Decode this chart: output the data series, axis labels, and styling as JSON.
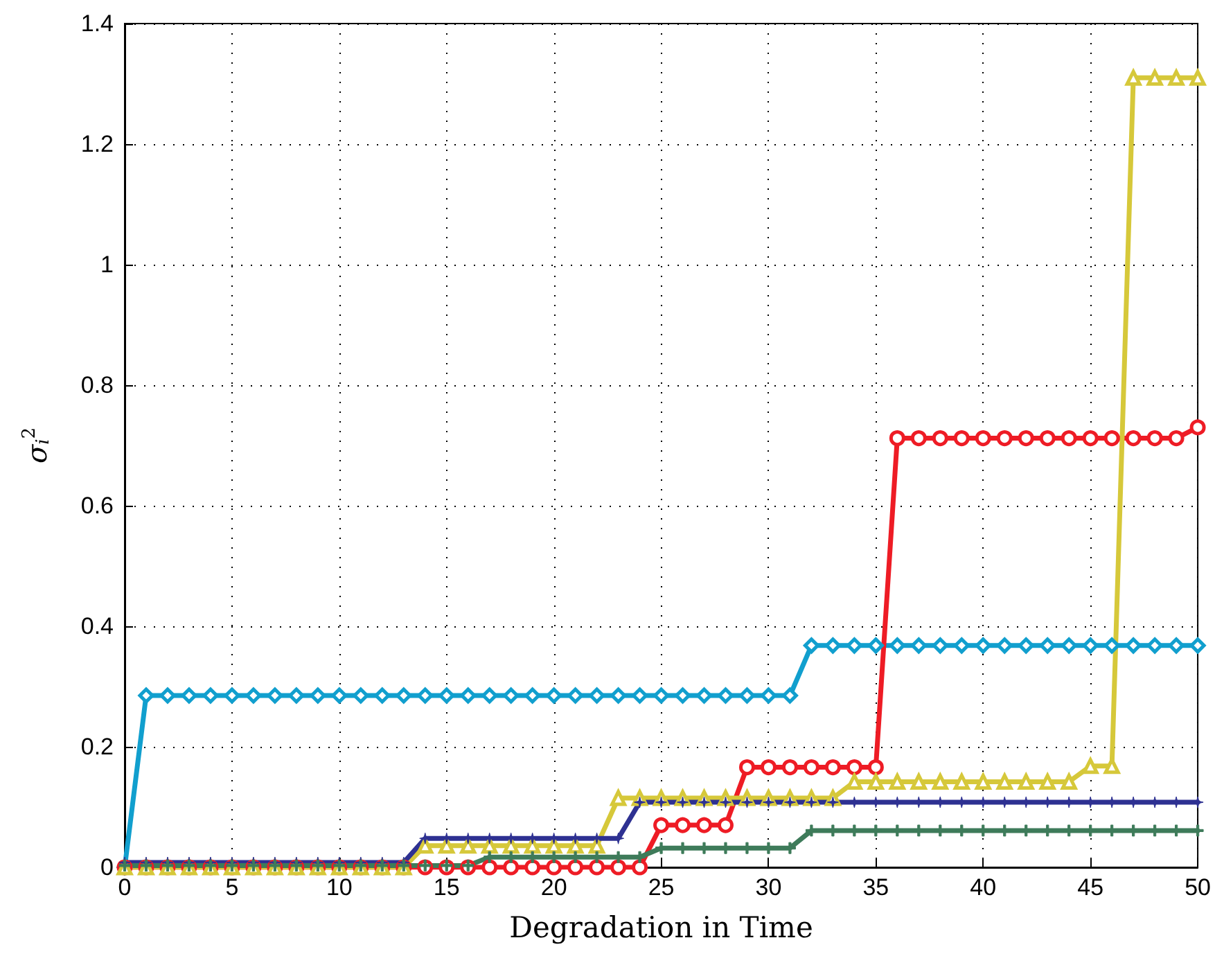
{
  "chart_data": {
    "type": "line",
    "xlabel": "Degradation in Time",
    "ylabel": "σ$_{i}$$^{2}$",
    "x": [
      0,
      1,
      2,
      3,
      4,
      5,
      6,
      7,
      8,
      9,
      10,
      11,
      12,
      13,
      14,
      15,
      16,
      17,
      18,
      19,
      20,
      21,
      22,
      23,
      24,
      25,
      26,
      27,
      28,
      29,
      30,
      31,
      32,
      33,
      34,
      35,
      36,
      37,
      38,
      39,
      40,
      41,
      42,
      43,
      44,
      45,
      46,
      47,
      48,
      49,
      50
    ],
    "xlim": [
      0,
      50
    ],
    "xticks": [
      0,
      5,
      10,
      15,
      20,
      25,
      30,
      35,
      40,
      45,
      50
    ],
    "ylim": [
      0,
      1.4
    ],
    "yticks": [
      0,
      0.2,
      0.4,
      0.6,
      0.8,
      1,
      1.2,
      1.4
    ],
    "grid": true,
    "legend": false,
    "line_style": "solid",
    "series": [
      {
        "color": "#119fce",
        "marker": "diamond",
        "values": [
          0,
          0.285,
          0.285,
          0.285,
          0.285,
          0.285,
          0.285,
          0.285,
          0.285,
          0.285,
          0.285,
          0.285,
          0.285,
          0.285,
          0.285,
          0.285,
          0.285,
          0.285,
          0.285,
          0.285,
          0.285,
          0.285,
          0.285,
          0.285,
          0.285,
          0.285,
          0.285,
          0.285,
          0.285,
          0.285,
          0.285,
          0.285,
          0.368,
          0.368,
          0.368,
          0.368,
          0.368,
          0.368,
          0.368,
          0.368,
          0.368,
          0.368,
          0.368,
          0.368,
          0.368,
          0.368,
          0.368,
          0.368,
          0.368,
          0.368,
          0.368
        ]
      },
      {
        "color": "#ee1c25",
        "marker": "circle",
        "values": [
          0,
          0,
          0,
          0,
          0,
          0,
          0,
          0,
          0,
          0,
          0,
          0,
          0,
          0,
          0,
          0,
          0,
          0,
          0,
          0,
          0,
          0,
          0,
          0,
          0,
          0.07,
          0.07,
          0.07,
          0.07,
          0.166,
          0.166,
          0.166,
          0.166,
          0.166,
          0.166,
          0.166,
          0.712,
          0.712,
          0.712,
          0.712,
          0.712,
          0.712,
          0.712,
          0.712,
          0.712,
          0.712,
          0.712,
          0.712,
          0.712,
          0.712,
          0.73
        ]
      },
      {
        "color": "#d6c83a",
        "marker": "triangle",
        "values": [
          0,
          0,
          0,
          0,
          0,
          0,
          0,
          0,
          0,
          0,
          0,
          0,
          0,
          0,
          0.036,
          0.036,
          0.036,
          0.036,
          0.036,
          0.036,
          0.036,
          0.036,
          0.036,
          0.115,
          0.115,
          0.115,
          0.115,
          0.115,
          0.115,
          0.115,
          0.115,
          0.115,
          0.115,
          0.115,
          0.142,
          0.142,
          0.142,
          0.142,
          0.142,
          0.142,
          0.142,
          0.142,
          0.142,
          0.142,
          0.142,
          0.168,
          0.168,
          1.31,
          1.31,
          1.31,
          1.31
        ]
      },
      {
        "color": "#2e3192",
        "marker": "star",
        "values": [
          0.008,
          0.008,
          0.008,
          0.008,
          0.008,
          0.008,
          0.008,
          0.008,
          0.008,
          0.008,
          0.008,
          0.008,
          0.008,
          0.008,
          0.048,
          0.048,
          0.048,
          0.048,
          0.048,
          0.048,
          0.048,
          0.048,
          0.048,
          0.048,
          0.108,
          0.108,
          0.108,
          0.108,
          0.108,
          0.108,
          0.108,
          0.108,
          0.108,
          0.108,
          0.108,
          0.108,
          0.108,
          0.108,
          0.108,
          0.108,
          0.108,
          0.108,
          0.108,
          0.108,
          0.108,
          0.108,
          0.108,
          0.108,
          0.108,
          0.108,
          0.108
        ]
      },
      {
        "color": "#3e7b5a",
        "marker": "cross",
        "values": [
          0.003,
          0.003,
          0.003,
          0.003,
          0.003,
          0.003,
          0.003,
          0.003,
          0.003,
          0.003,
          0.003,
          0.003,
          0.003,
          0.003,
          0.003,
          0.003,
          0.003,
          0.017,
          0.017,
          0.017,
          0.017,
          0.017,
          0.017,
          0.017,
          0.017,
          0.032,
          0.032,
          0.032,
          0.032,
          0.032,
          0.032,
          0.032,
          0.061,
          0.061,
          0.061,
          0.061,
          0.061,
          0.061,
          0.061,
          0.061,
          0.061,
          0.061,
          0.061,
          0.061,
          0.061,
          0.061,
          0.061,
          0.061,
          0.061,
          0.061,
          0.061
        ]
      }
    ]
  }
}
